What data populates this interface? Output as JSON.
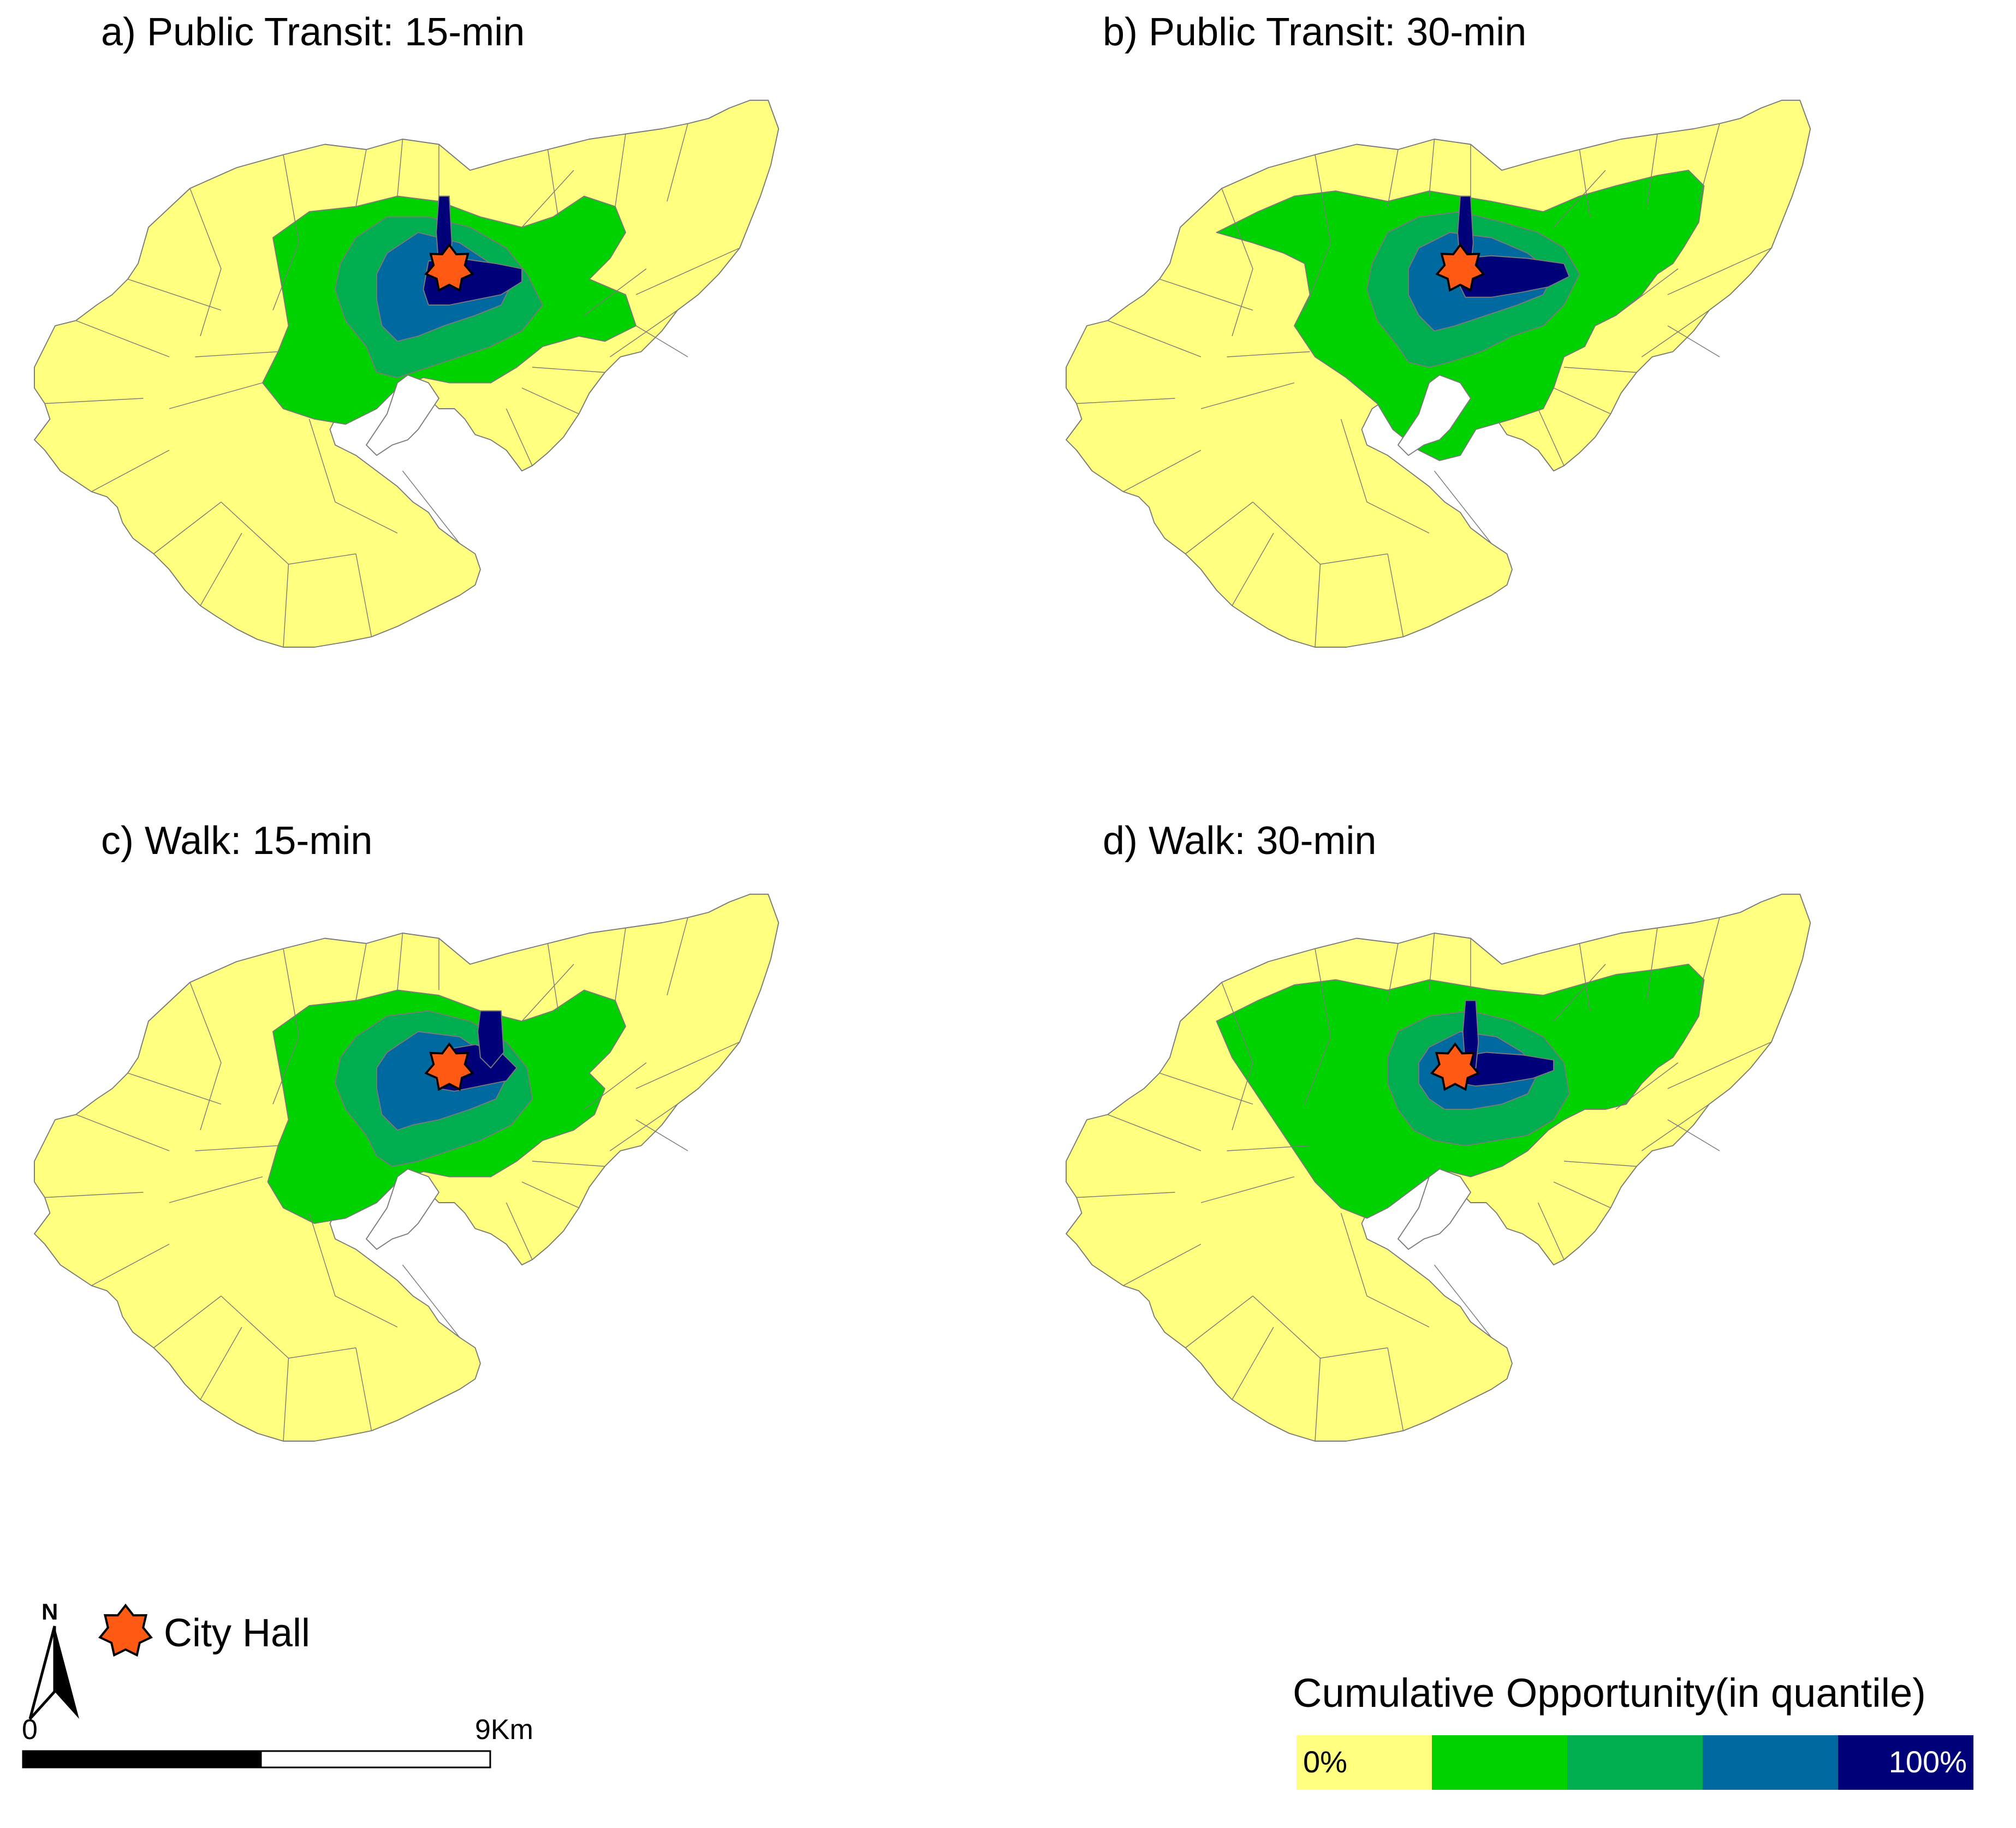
{
  "panels": [
    {
      "id": "a",
      "title": "a) Public Transit: 15-min"
    },
    {
      "id": "b",
      "title": "b) Public Transit: 30-min"
    },
    {
      "id": "c",
      "title": "c) Walk: 15-min"
    },
    {
      "id": "d",
      "title": "d) Walk: 30-min"
    }
  ],
  "legend": {
    "title": "Cumulative Opportunity(in quantile)",
    "low_label": "0%",
    "high_label": "100%",
    "classes": [
      "#ffff80",
      "#00d200",
      "#00ae50",
      "#0069a0",
      "#000078"
    ]
  },
  "marker": {
    "label": "City Hall",
    "color": "#ff5a14"
  },
  "north_arrow": {
    "label": "N"
  },
  "scale_bar": {
    "start": "0",
    "end": "9Km"
  },
  "colors": {
    "boundary": "#7a7a7a",
    "water": "#ffffff"
  }
}
